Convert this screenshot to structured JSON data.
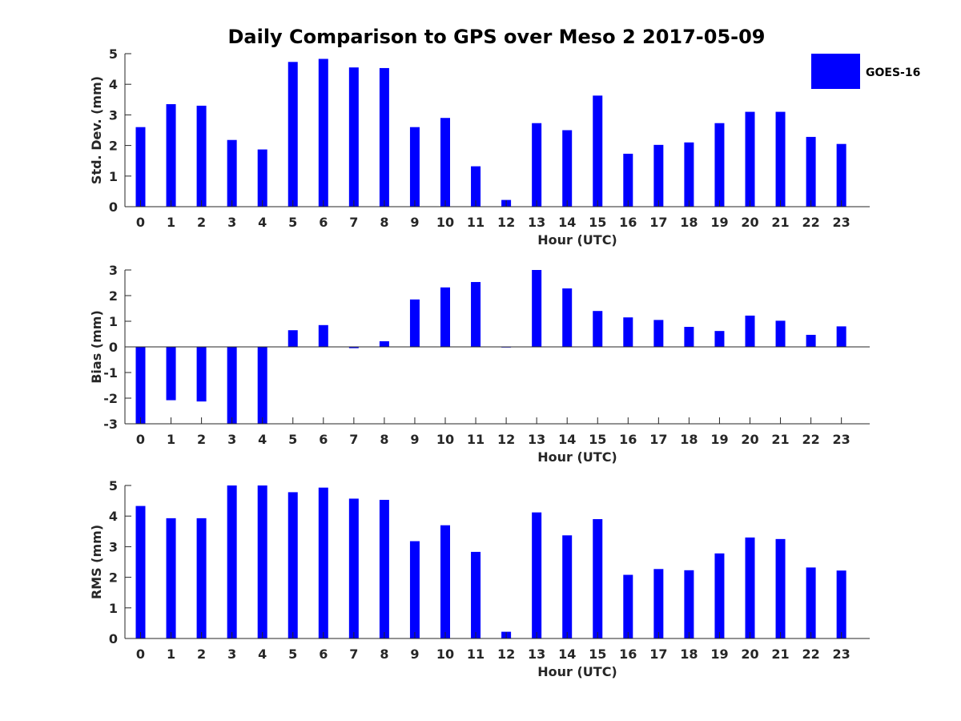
{
  "title": "Daily Comparison to GPS over Meso 2 2017-05-09",
  "colors": {
    "bar": "#0000ff",
    "axis": "#262626"
  },
  "legend": {
    "label": "GOES-16",
    "placement": "top-right"
  },
  "chart_data": [
    {
      "type": "bar",
      "xlabel": "Hour (UTC)",
      "ylabel": "Std. Dev. (mm)",
      "ylim": [
        0,
        5
      ],
      "yticks": [
        "0",
        "1",
        "2",
        "3",
        "4",
        "5"
      ],
      "categories": [
        "0",
        "1",
        "2",
        "3",
        "4",
        "5",
        "6",
        "7",
        "8",
        "9",
        "10",
        "11",
        "12",
        "13",
        "14",
        "15",
        "16",
        "17",
        "18",
        "19",
        "20",
        "21",
        "22",
        "23"
      ],
      "series": [
        {
          "name": "GOES-16",
          "values": [
            2.6,
            3.35,
            3.3,
            2.18,
            1.87,
            4.73,
            4.83,
            4.55,
            4.53,
            2.6,
            2.9,
            1.32,
            0.22,
            2.73,
            2.5,
            3.63,
            1.73,
            2.02,
            2.1,
            2.73,
            3.1,
            3.1,
            2.28,
            2.05
          ]
        }
      ]
    },
    {
      "type": "bar",
      "xlabel": "Hour (UTC)",
      "ylabel": "Bias (mm)",
      "ylim": [
        -3,
        3
      ],
      "yticks": [
        "-3",
        "-2",
        "-1",
        "0",
        "1",
        "2",
        "3"
      ],
      "categories": [
        "0",
        "1",
        "2",
        "3",
        "4",
        "5",
        "6",
        "7",
        "8",
        "9",
        "10",
        "11",
        "12",
        "13",
        "14",
        "15",
        "16",
        "17",
        "18",
        "19",
        "20",
        "21",
        "22",
        "23"
      ],
      "series": [
        {
          "name": "GOES-16",
          "values": [
            -3.0,
            -2.08,
            -2.13,
            -3.0,
            -3.0,
            0.65,
            0.85,
            -0.05,
            0.22,
            1.85,
            2.32,
            2.53,
            0.0,
            3.0,
            2.28,
            1.4,
            1.15,
            1.05,
            0.78,
            0.62,
            1.22,
            1.02,
            0.47,
            0.8
          ]
        }
      ]
    },
    {
      "type": "bar",
      "xlabel": "Hour (UTC)",
      "ylabel": "RMS (mm)",
      "ylim": [
        0,
        5
      ],
      "yticks": [
        "0",
        "1",
        "2",
        "3",
        "4",
        "5"
      ],
      "categories": [
        "0",
        "1",
        "2",
        "3",
        "4",
        "5",
        "6",
        "7",
        "8",
        "9",
        "10",
        "11",
        "12",
        "13",
        "14",
        "15",
        "16",
        "17",
        "18",
        "19",
        "20",
        "21",
        "22",
        "23"
      ],
      "series": [
        {
          "name": "GOES-16",
          "values": [
            4.33,
            3.93,
            3.93,
            5.0,
            5.0,
            4.78,
            4.93,
            4.57,
            4.53,
            3.18,
            3.7,
            2.83,
            0.22,
            4.12,
            3.37,
            3.9,
            2.08,
            2.27,
            2.23,
            2.78,
            3.3,
            3.25,
            2.32,
            2.22
          ]
        }
      ]
    }
  ]
}
